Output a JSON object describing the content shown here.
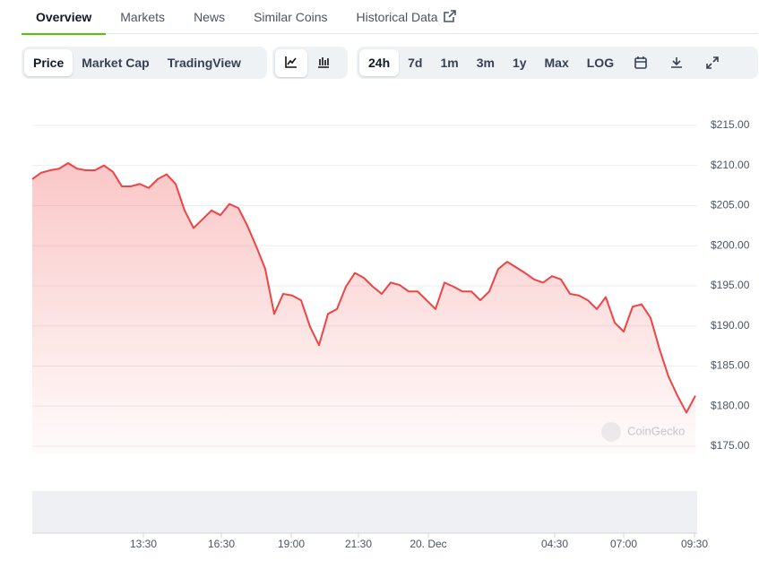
{
  "tabs": [
    "Overview",
    "Markets",
    "News",
    "Similar Coins",
    "Historical Data"
  ],
  "view_buttons": [
    "Price",
    "Market Cap",
    "TradingView"
  ],
  "range_buttons": [
    "24h",
    "7d",
    "1m",
    "3m",
    "1y",
    "Max",
    "LOG"
  ],
  "watermark": "CoinGecko",
  "chart_data": {
    "type": "line",
    "color": "#ef4444",
    "values": [
      208.3,
      209.1,
      209.4,
      209.6,
      210.3,
      209.6,
      209.4,
      209.4,
      210.0,
      209.2,
      207.4,
      207.4,
      207.7,
      207.2,
      208.3,
      208.9,
      207.7,
      204.4,
      202.2,
      203.3,
      204.4,
      203.8,
      205.2,
      204.7,
      202.5,
      199.9,
      197.1,
      191.5,
      194.0,
      193.8,
      193.2,
      189.9,
      187.6,
      191.5,
      192.1,
      194.9,
      196.6,
      196.0,
      194.9,
      194.0,
      195.4,
      195.1,
      194.3,
      194.3,
      193.2,
      192.1,
      195.4,
      194.9,
      194.3,
      194.3,
      193.2,
      194.3,
      197.1,
      198.0,
      197.3,
      196.6,
      195.8,
      195.4,
      196.2,
      195.8,
      194.0,
      193.8,
      193.2,
      192.1,
      193.6,
      190.4,
      189.3,
      192.4,
      192.7,
      191.0,
      187.1,
      183.7,
      181.3,
      179.2,
      181.3
    ],
    "xlim": [
      0,
      74
    ],
    "xticks": [
      {
        "value": 12.4,
        "label": "13:30"
      },
      {
        "value": 21.1,
        "label": "16:30"
      },
      {
        "value": 28.9,
        "label": "19:00"
      },
      {
        "value": 36.4,
        "label": "21:30"
      },
      {
        "value": 44.2,
        "label": "20. Dec"
      },
      {
        "value": 58.3,
        "label": "04:30"
      },
      {
        "value": 66.0,
        "label": "07:00"
      },
      {
        "value": 73.9,
        "label": "09:30"
      }
    ],
    "ylim": [
      174,
      217
    ],
    "yticks": [
      {
        "value": 175,
        "label": "$175.00"
      },
      {
        "value": 180,
        "label": "$180.00"
      },
      {
        "value": 185,
        "label": "$185.00"
      },
      {
        "value": 190,
        "label": "$190.00"
      },
      {
        "value": 195,
        "label": "$195.00"
      },
      {
        "value": 200,
        "label": "$200.00"
      },
      {
        "value": 205,
        "label": "$205.00"
      },
      {
        "value": 210,
        "label": "$210.00"
      },
      {
        "value": 215,
        "label": "$215.00"
      }
    ],
    "grid": true
  }
}
